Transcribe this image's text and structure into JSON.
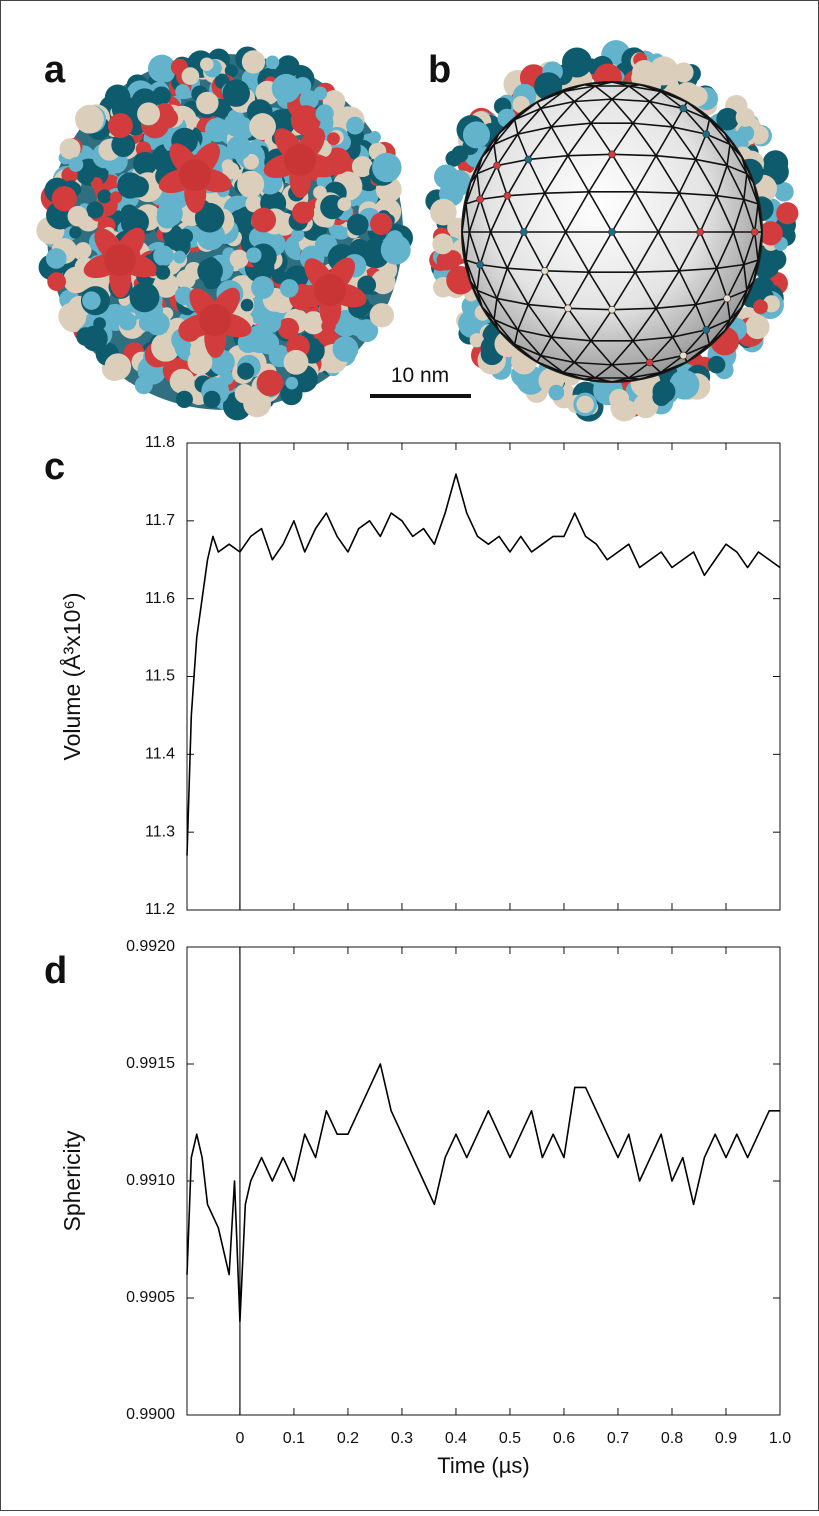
{
  "panels": [
    {
      "label": "a"
    },
    {
      "label": "b"
    }
  ],
  "scale_bar": "10 nm",
  "chart_data": [
    {
      "type": "line",
      "panel_label": "c",
      "y_label": "Volume (Å³x10⁶)",
      "xlim": [
        -0.098,
        1.0
      ],
      "xticks": [
        0,
        0.1,
        0.2,
        0.3,
        0.4,
        0.5,
        0.6,
        0.7,
        0.8,
        0.9,
        1
      ],
      "xticklabels": false,
      "ylim": [
        11.2,
        11.8
      ],
      "yticks": [
        11.2,
        11.3,
        11.4,
        11.5,
        11.6,
        11.7,
        11.8
      ],
      "vline": 0,
      "color": "#000000",
      "x": [
        -0.098,
        -0.09,
        -0.08,
        -0.07,
        -0.06,
        -0.05,
        -0.04,
        -0.02,
        0,
        0.02,
        0.04,
        0.06,
        0.08,
        0.1,
        0.12,
        0.14,
        0.16,
        0.18,
        0.2,
        0.22,
        0.24,
        0.26,
        0.28,
        0.3,
        0.32,
        0.34,
        0.36,
        0.38,
        0.4,
        0.42,
        0.44,
        0.46,
        0.48,
        0.5,
        0.52,
        0.54,
        0.56,
        0.58,
        0.6,
        0.62,
        0.64,
        0.66,
        0.68,
        0.7,
        0.72,
        0.74,
        0.76,
        0.78,
        0.8,
        0.82,
        0.84,
        0.86,
        0.88,
        0.9,
        0.92,
        0.94,
        0.96,
        0.98,
        1.0
      ],
      "values": [
        11.27,
        11.45,
        11.55,
        11.6,
        11.65,
        11.68,
        11.66,
        11.67,
        11.66,
        11.68,
        11.69,
        11.65,
        11.67,
        11.7,
        11.66,
        11.69,
        11.71,
        11.68,
        11.66,
        11.69,
        11.7,
        11.68,
        11.71,
        11.7,
        11.68,
        11.69,
        11.67,
        11.71,
        11.76,
        11.71,
        11.68,
        11.67,
        11.68,
        11.66,
        11.68,
        11.66,
        11.67,
        11.68,
        11.68,
        11.71,
        11.68,
        11.67,
        11.65,
        11.66,
        11.67,
        11.64,
        11.65,
        11.66,
        11.64,
        11.65,
        11.66,
        11.63,
        11.65,
        11.67,
        11.66,
        11.64,
        11.66,
        11.65,
        11.64
      ]
    },
    {
      "type": "line",
      "panel_label": "d",
      "y_label": "Sphericity",
      "x_label": "Time (µs)",
      "xlim": [
        -0.098,
        1.0
      ],
      "xticks": [
        0,
        0.1,
        0.2,
        0.3,
        0.4,
        0.5,
        0.6,
        0.7,
        0.8,
        0.9,
        {
          "value": 1,
          "label": "1.0"
        }
      ],
      "xticklabels": true,
      "ylim": [
        0.99,
        0.992
      ],
      "yticks": [
        {
          "value": 0.99,
          "label": "0.9900"
        },
        {
          "value": 0.9905,
          "label": "0.9905"
        },
        {
          "value": 0.991,
          "label": "0.9910"
        },
        {
          "value": 0.9915,
          "label": "0.9915"
        },
        {
          "value": 0.992,
          "label": "0.9920"
        }
      ],
      "vline": 0,
      "color": "#000000",
      "x": [
        -0.098,
        -0.09,
        -0.08,
        -0.07,
        -0.06,
        -0.04,
        -0.02,
        -0.01,
        0,
        0.01,
        0.02,
        0.04,
        0.06,
        0.08,
        0.1,
        0.12,
        0.14,
        0.16,
        0.18,
        0.2,
        0.22,
        0.24,
        0.26,
        0.28,
        0.3,
        0.32,
        0.34,
        0.36,
        0.38,
        0.4,
        0.42,
        0.44,
        0.46,
        0.48,
        0.5,
        0.52,
        0.54,
        0.56,
        0.58,
        0.6,
        0.62,
        0.64,
        0.66,
        0.68,
        0.7,
        0.72,
        0.74,
        0.76,
        0.78,
        0.8,
        0.82,
        0.84,
        0.86,
        0.88,
        0.9,
        0.92,
        0.94,
        0.96,
        0.98,
        1.0
      ],
      "values": [
        0.9906,
        0.9911,
        0.9912,
        0.9911,
        0.9909,
        0.9908,
        0.9906,
        0.991,
        0.9904,
        0.9909,
        0.991,
        0.9911,
        0.991,
        0.9911,
        0.991,
        0.9912,
        0.9911,
        0.9913,
        0.9912,
        0.9912,
        0.9913,
        0.9914,
        0.9915,
        0.9913,
        0.9912,
        0.9911,
        0.991,
        0.9909,
        0.9911,
        0.9912,
        0.9911,
        0.9912,
        0.9913,
        0.9912,
        0.9911,
        0.9912,
        0.9913,
        0.9911,
        0.9912,
        0.9911,
        0.9914,
        0.9914,
        0.9913,
        0.9912,
        0.9911,
        0.9912,
        0.991,
        0.9911,
        0.9912,
        0.991,
        0.9911,
        0.9909,
        0.9911,
        0.9912,
        0.9911,
        0.9912,
        0.9911,
        0.9912,
        0.9913,
        0.9913
      ]
    }
  ]
}
